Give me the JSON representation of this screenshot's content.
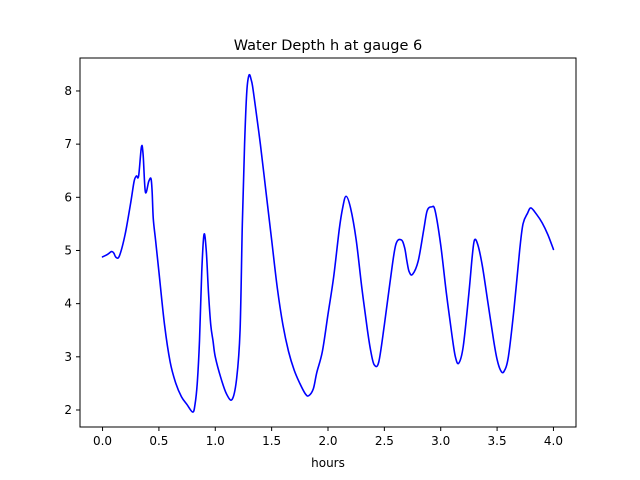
{
  "chart_data": {
    "type": "line",
    "title": "Water Depth h at gauge 6",
    "xlabel": "hours",
    "ylabel": "",
    "xlim": [
      -0.2,
      4.2
    ],
    "ylim": [
      1.68,
      8.62
    ],
    "xticks": [
      0.0,
      0.5,
      1.0,
      1.5,
      2.0,
      2.5,
      3.0,
      3.5,
      4.0
    ],
    "xtick_labels": [
      "0.0",
      "0.5",
      "1.0",
      "1.5",
      "2.0",
      "2.5",
      "3.0",
      "3.5",
      "4.0"
    ],
    "yticks": [
      2,
      3,
      4,
      5,
      6,
      7,
      8
    ],
    "ytick_labels": [
      "2",
      "3",
      "4",
      "5",
      "6",
      "7",
      "8"
    ],
    "grid": false,
    "line_color": "#0000ff",
    "series": [
      {
        "x": [
          0.0,
          0.04,
          0.08,
          0.1,
          0.12,
          0.15,
          0.2,
          0.25,
          0.28,
          0.3,
          0.32,
          0.345,
          0.36,
          0.38,
          0.41,
          0.43,
          0.44,
          0.45,
          0.47,
          0.5,
          0.55,
          0.6,
          0.65,
          0.7,
          0.75,
          0.8,
          0.82,
          0.84,
          0.86,
          0.88,
          0.9,
          0.92,
          0.94,
          0.96,
          0.98,
          1.0,
          1.05,
          1.1,
          1.15,
          1.19,
          1.22,
          1.24,
          1.26,
          1.28,
          1.3,
          1.32,
          1.33,
          1.35,
          1.4,
          1.45,
          1.5,
          1.55,
          1.6,
          1.65,
          1.7,
          1.75,
          1.8,
          1.83,
          1.87,
          1.9,
          1.95,
          2.0,
          2.05,
          2.1,
          2.13,
          2.16,
          2.2,
          2.25,
          2.3,
          2.35,
          2.38,
          2.41,
          2.45,
          2.5,
          2.55,
          2.6,
          2.65,
          2.68,
          2.7,
          2.72,
          2.75,
          2.8,
          2.85,
          2.88,
          2.92,
          2.95,
          3.0,
          3.05,
          3.1,
          3.13,
          3.16,
          3.2,
          3.25,
          3.28,
          3.3,
          3.33,
          3.37,
          3.42,
          3.47,
          3.5,
          3.53,
          3.56,
          3.6,
          3.65,
          3.7,
          3.73,
          3.77,
          3.8,
          3.85,
          3.9,
          3.95,
          4.0
        ],
        "values": [
          4.88,
          4.92,
          4.98,
          4.95,
          4.87,
          4.9,
          5.3,
          5.9,
          6.3,
          6.4,
          6.4,
          6.95,
          6.8,
          6.1,
          6.3,
          6.35,
          6.1,
          5.6,
          5.2,
          4.6,
          3.6,
          2.9,
          2.5,
          2.25,
          2.1,
          1.96,
          2.1,
          2.5,
          3.3,
          4.6,
          5.3,
          5.0,
          4.2,
          3.6,
          3.3,
          3.0,
          2.6,
          2.3,
          2.2,
          2.6,
          3.5,
          5.5,
          7.0,
          8.0,
          8.3,
          8.2,
          8.1,
          7.8,
          7.0,
          6.1,
          5.2,
          4.3,
          3.6,
          3.1,
          2.75,
          2.5,
          2.3,
          2.27,
          2.4,
          2.7,
          3.1,
          3.8,
          4.5,
          5.4,
          5.8,
          6.02,
          5.8,
          5.2,
          4.3,
          3.5,
          3.1,
          2.85,
          2.9,
          3.6,
          4.4,
          5.1,
          5.2,
          5.05,
          4.8,
          4.6,
          4.55,
          4.8,
          5.4,
          5.75,
          5.82,
          5.75,
          5.1,
          4.2,
          3.4,
          3.0,
          2.88,
          3.2,
          4.2,
          4.9,
          5.2,
          5.1,
          4.7,
          4.0,
          3.3,
          2.95,
          2.75,
          2.72,
          3.0,
          3.9,
          5.0,
          5.5,
          5.7,
          5.8,
          5.68,
          5.52,
          5.3,
          5.02
        ]
      }
    ]
  }
}
